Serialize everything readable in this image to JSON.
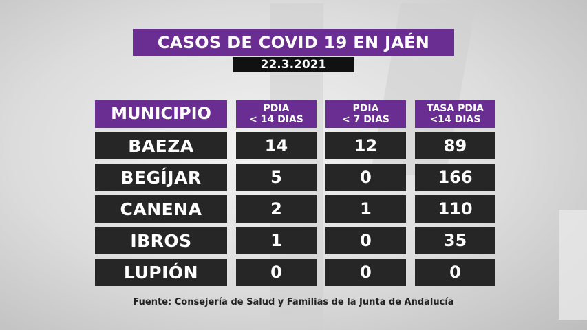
{
  "title": "CASOS DE COVID 19 EN JAÉN",
  "date": "22.3.2021",
  "headers": {
    "municipio": "MUNICIPIO",
    "col1": [
      "PDIA",
      "< 14 DIAS"
    ],
    "col2": [
      "PDIA",
      "< 7 DIAS"
    ],
    "col3": [
      "TASA PDIA",
      "<14 DIAS"
    ]
  },
  "rows": [
    {
      "name": "BAEZA",
      "pdia14": "14",
      "pdia7": "12",
      "tasa": "89"
    },
    {
      "name": "BEGÍJAR",
      "pdia14": "5",
      "pdia7": "0",
      "tasa": "166"
    },
    {
      "name": "CANENA",
      "pdia14": "2",
      "pdia7": "1",
      "tasa": "110"
    },
    {
      "name": "IBROS",
      "pdia14": "1",
      "pdia7": "0",
      "tasa": "35"
    },
    {
      "name": "LUPIÓN",
      "pdia14": "0",
      "pdia7": "0",
      "tasa": "0"
    }
  ],
  "source": "Fuente: Consejería de Salud y Familias de la Junta de Andalucía",
  "colors": {
    "accent": "#6a2d91",
    "cell": "#262626",
    "date_bg": "#111111"
  }
}
